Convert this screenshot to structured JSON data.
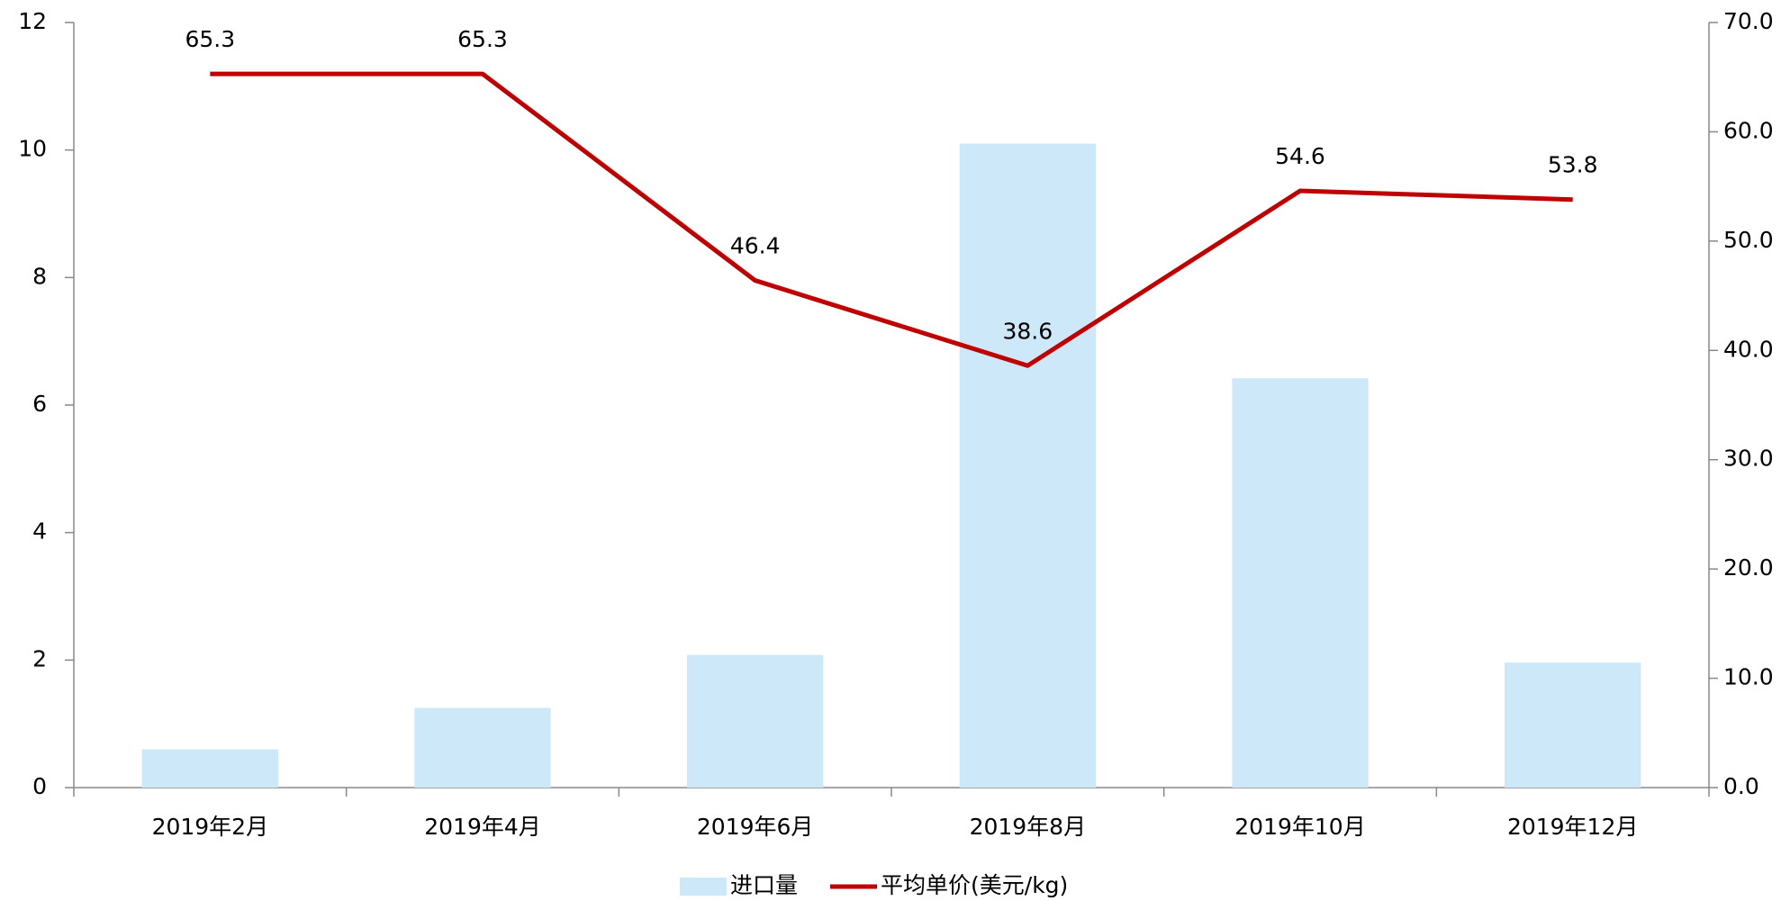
{
  "chart_data": {
    "type": "bar-line",
    "categories": [
      "2019年2月",
      "2019年4月",
      "2019年6月",
      "2019年8月",
      "2019年10月",
      "2019年12月"
    ],
    "series": [
      {
        "name": "进口量",
        "type": "bar",
        "color": "#cce8f9",
        "values": [
          0.6,
          1.25,
          2.08,
          10.1,
          6.42,
          1.96
        ]
      },
      {
        "name": "平均单价(美元/kg)",
        "type": "line",
        "axis": "y2",
        "color": "#c00000",
        "values": [
          65.3,
          65.3,
          46.4,
          38.6,
          54.6,
          53.8
        ]
      }
    ],
    "ylim": [
      0,
      12
    ],
    "yticks": [
      0,
      2,
      4,
      6,
      8,
      10,
      12
    ],
    "y2lim": [
      0,
      70
    ],
    "y2ticks": [
      {
        "value": 0,
        "label": "0.0"
      },
      {
        "value": 10,
        "label": "10.0"
      },
      {
        "value": 20,
        "label": "20.0"
      },
      {
        "value": 30,
        "label": "30.0"
      },
      {
        "value": 40,
        "label": "40.0"
      },
      {
        "value": 50,
        "label": "50.0"
      },
      {
        "value": 60,
        "label": "60.0"
      },
      {
        "value": 70,
        "label": "70.0"
      }
    ],
    "legend": "bottom"
  }
}
